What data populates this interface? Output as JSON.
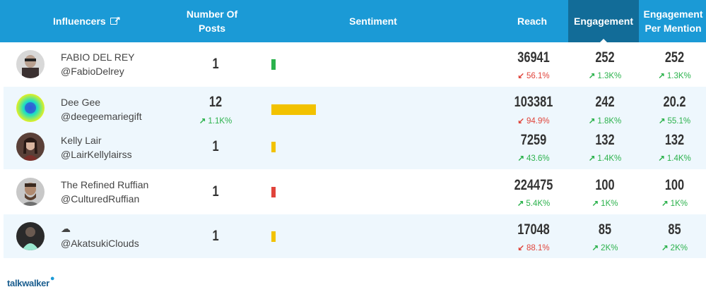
{
  "header": {
    "influencers": "Influencers",
    "posts_line1": "Number Of",
    "posts_line2": "Posts",
    "sentiment": "Sentiment",
    "reach": "Reach",
    "engagement": "Engagement",
    "epm_line1": "Engagement",
    "epm_line2": "Per Mention"
  },
  "colors": {
    "header_bg": "#1b9ad6",
    "active_header_bg": "#126c98",
    "positive": "#2bb24c",
    "negative": "#e0443b",
    "neutral_bar": "#f2c200",
    "green_bar": "#2bb24c",
    "red_bar": "#e0443b"
  },
  "rows": [
    {
      "name": "FABIO DEL REY",
      "handle": "@FabioDelrey",
      "posts": "1",
      "posts_delta": "",
      "sentiment_color": "green",
      "reach": "36941",
      "reach_delta": "56.1%",
      "reach_dir": "down",
      "engagement": "252",
      "engagement_delta": "1.3K%",
      "epm": "252",
      "epm_delta": "1.3K%"
    },
    {
      "name": "Dee Gee",
      "handle": "@deegeemariegift",
      "posts": "12",
      "posts_delta": "1.1K%",
      "sentiment_color": "yellow",
      "reach": "103381",
      "reach_delta": "94.9%",
      "reach_dir": "down",
      "engagement": "242",
      "engagement_delta": "1.8K%",
      "epm": "20.2",
      "epm_delta": "55.1%"
    },
    {
      "name": "Kelly Lair",
      "handle": "@LairKellylairss",
      "posts": "1",
      "posts_delta": "",
      "sentiment_color": "yellow",
      "reach": "7259",
      "reach_delta": "43.6%",
      "reach_dir": "up",
      "engagement": "132",
      "engagement_delta": "1.4K%",
      "epm": "132",
      "epm_delta": "1.4K%"
    },
    {
      "name": "The Refined Ruffian",
      "handle": "@CulturedRuffian",
      "posts": "1",
      "posts_delta": "",
      "sentiment_color": "red",
      "reach": "224475",
      "reach_delta": "5.4K%",
      "reach_dir": "up",
      "engagement": "100",
      "engagement_delta": "1K%",
      "epm": "100",
      "epm_delta": "1K%"
    },
    {
      "name": "☁",
      "handle": "@AkatsukiClouds",
      "posts": "1",
      "posts_delta": "",
      "sentiment_color": "yellow",
      "reach": "17048",
      "reach_delta": "88.1%",
      "reach_dir": "down",
      "engagement": "85",
      "engagement_delta": "2K%",
      "epm": "85",
      "epm_delta": "2K%"
    }
  ],
  "logo": "talkwalker"
}
